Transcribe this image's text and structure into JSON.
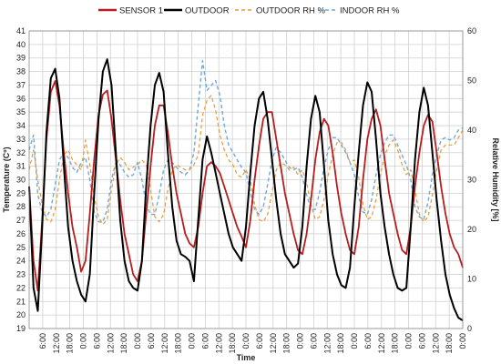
{
  "chart_data": {
    "type": "line",
    "xlabel": "Time",
    "ylabel": "Temperature (Cº)",
    "y2label": "Relative Humidity [%]",
    "ylim": [
      19,
      41
    ],
    "y2lim": [
      0,
      60
    ],
    "yticks": [
      19,
      20,
      21,
      22,
      23,
      24,
      25,
      26,
      27,
      28,
      29,
      30,
      31,
      32,
      33,
      34,
      35,
      36,
      37,
      38,
      39,
      40,
      41
    ],
    "y2ticks": [
      0,
      10,
      20,
      30,
      40,
      50,
      60
    ],
    "xlim": [
      0,
      8
    ],
    "x_unit": "days from first midnight (data index)",
    "xticks": [
      {
        "x": 0.25,
        "label": "6:00"
      },
      {
        "x": 0.5,
        "label": "12:00"
      },
      {
        "x": 0.75,
        "label": "18:00"
      },
      {
        "x": 1.0,
        "label": "0:00"
      },
      {
        "x": 1.25,
        "label": "6:00"
      },
      {
        "x": 1.5,
        "label": "12:00"
      },
      {
        "x": 1.75,
        "label": "18:00"
      },
      {
        "x": 2.0,
        "label": "0:00"
      },
      {
        "x": 2.25,
        "label": "6:00"
      },
      {
        "x": 2.5,
        "label": "12:00"
      },
      {
        "x": 2.75,
        "label": "18:00"
      },
      {
        "x": 3.0,
        "label": "0:00"
      },
      {
        "x": 3.25,
        "label": "6:00"
      },
      {
        "x": 3.5,
        "label": "12:00"
      },
      {
        "x": 3.75,
        "label": "18:00"
      },
      {
        "x": 4.0,
        "label": "0:00"
      },
      {
        "x": 4.25,
        "label": "6:00"
      },
      {
        "x": 4.5,
        "label": "12:00"
      },
      {
        "x": 4.75,
        "label": "18:00"
      },
      {
        "x": 5.0,
        "label": "0:00"
      },
      {
        "x": 5.25,
        "label": "6:00"
      },
      {
        "x": 5.5,
        "label": "12:00"
      },
      {
        "x": 5.75,
        "label": "18:00"
      },
      {
        "x": 6.0,
        "label": "0:00"
      },
      {
        "x": 6.25,
        "label": "6:00"
      },
      {
        "x": 6.5,
        "label": "12:00"
      },
      {
        "x": 6.75,
        "label": "18:00"
      },
      {
        "x": 7.0,
        "label": "0:00"
      },
      {
        "x": 7.25,
        "label": "6:00"
      },
      {
        "x": 7.5,
        "label": "12:00"
      },
      {
        "x": 7.75,
        "label": "18:00"
      },
      {
        "x": 8.0,
        "label": "0:00"
      }
    ],
    "grid": true,
    "legend_position": "top",
    "series": [
      {
        "name": "SENSOR 1",
        "axis": "left",
        "color": "#b41e1e",
        "dash": "solid",
        "width": 1.8,
        "x": [
          0.0,
          0.08,
          0.16,
          0.24,
          0.32,
          0.4,
          0.48,
          0.56,
          0.64,
          0.72,
          0.8,
          0.88,
          0.96,
          1.04,
          1.12,
          1.2,
          1.28,
          1.36,
          1.44,
          1.52,
          1.6,
          1.68,
          1.76,
          1.84,
          1.92,
          2.0,
          2.08,
          2.16,
          2.24,
          2.32,
          2.4,
          2.48,
          2.56,
          2.64,
          2.72,
          2.8,
          2.88,
          2.96,
          3.04,
          3.12,
          3.2,
          3.28,
          3.36,
          3.44,
          3.52,
          3.6,
          3.68,
          3.76,
          3.84,
          3.92,
          4.0,
          4.08,
          4.16,
          4.24,
          4.32,
          4.4,
          4.48,
          4.56,
          4.64,
          4.72,
          4.8,
          4.88,
          4.96,
          5.04,
          5.12,
          5.2,
          5.28,
          5.36,
          5.44,
          5.52,
          5.6,
          5.68,
          5.76,
          5.84,
          5.92,
          6.0,
          6.08,
          6.16,
          6.24,
          6.32,
          6.4,
          6.48,
          6.56,
          6.64,
          6.72,
          6.8,
          6.88,
          6.96,
          7.04,
          7.12,
          7.2,
          7.28,
          7.36,
          7.44,
          7.52,
          7.6,
          7.68,
          7.76,
          7.84,
          7.92,
          8.0
        ],
        "y": [
          29.5,
          24.0,
          21.8,
          27.0,
          33.0,
          36.5,
          37.3,
          35.5,
          32.0,
          29.0,
          26.5,
          25.0,
          23.2,
          24.0,
          27.5,
          31.5,
          34.8,
          36.3,
          36.6,
          34.5,
          31.5,
          28.5,
          26.0,
          24.5,
          23.0,
          22.5,
          24.0,
          27.5,
          31.0,
          34.0,
          35.5,
          35.5,
          33.5,
          31.0,
          29.0,
          27.5,
          26.0,
          25.3,
          25.0,
          26.5,
          29.0,
          31.0,
          31.3,
          31.0,
          30.5,
          29.5,
          28.5,
          27.5,
          26.5,
          25.8,
          25.0,
          27.0,
          30.0,
          32.5,
          34.5,
          35.0,
          35.0,
          33.0,
          31.0,
          29.0,
          27.5,
          26.0,
          24.8,
          24.5,
          26.0,
          28.5,
          31.5,
          33.5,
          34.5,
          34.0,
          32.0,
          29.5,
          27.5,
          26.0,
          24.8,
          24.5,
          26.5,
          30.0,
          33.0,
          34.5,
          35.2,
          34.0,
          31.5,
          29.0,
          27.5,
          26.0,
          24.8,
          24.5,
          26.5,
          29.5,
          32.0,
          34.0,
          34.8,
          34.3,
          32.0,
          29.5,
          27.5,
          26.0,
          25.0,
          24.5,
          23.5
        ]
      },
      {
        "name": "OUTDOOR",
        "axis": "left",
        "color": "#000000",
        "dash": "solid",
        "width": 2.0,
        "x": [
          0.0,
          0.08,
          0.16,
          0.24,
          0.32,
          0.4,
          0.48,
          0.56,
          0.64,
          0.72,
          0.8,
          0.88,
          0.96,
          1.04,
          1.12,
          1.2,
          1.28,
          1.36,
          1.44,
          1.52,
          1.6,
          1.68,
          1.76,
          1.84,
          1.92,
          2.0,
          2.08,
          2.16,
          2.24,
          2.32,
          2.4,
          2.48,
          2.56,
          2.64,
          2.72,
          2.8,
          2.88,
          2.96,
          3.04,
          3.12,
          3.2,
          3.28,
          3.36,
          3.44,
          3.52,
          3.6,
          3.68,
          3.76,
          3.84,
          3.92,
          4.0,
          4.08,
          4.16,
          4.24,
          4.32,
          4.4,
          4.48,
          4.56,
          4.64,
          4.72,
          4.8,
          4.88,
          4.96,
          5.04,
          5.12,
          5.2,
          5.28,
          5.36,
          5.44,
          5.52,
          5.6,
          5.68,
          5.76,
          5.84,
          5.92,
          6.0,
          6.08,
          6.16,
          6.24,
          6.32,
          6.4,
          6.48,
          6.56,
          6.64,
          6.72,
          6.8,
          6.88,
          6.96,
          7.04,
          7.12,
          7.2,
          7.28,
          7.36,
          7.44,
          7.52,
          7.6,
          7.68,
          7.76,
          7.84,
          7.92,
          8.0
        ],
        "y": [
          29.5,
          22.0,
          20.3,
          26.5,
          33.5,
          37.5,
          38.2,
          36.0,
          31.0,
          26.5,
          24.0,
          22.5,
          21.5,
          21.0,
          23.0,
          29.0,
          34.5,
          38.0,
          38.9,
          37.0,
          32.0,
          27.0,
          24.0,
          22.5,
          22.0,
          21.8,
          24.0,
          29.5,
          34.0,
          37.0,
          37.9,
          36.5,
          32.0,
          28.0,
          25.5,
          24.5,
          24.3,
          24.0,
          22.5,
          27.0,
          31.5,
          33.2,
          32.0,
          30.5,
          29.0,
          27.5,
          26.0,
          25.0,
          24.5,
          24.0,
          26.5,
          30.5,
          34.0,
          36.0,
          36.5,
          34.5,
          31.5,
          28.5,
          26.0,
          24.5,
          24.0,
          23.5,
          23.8,
          26.5,
          31.0,
          34.5,
          36.2,
          35.0,
          31.0,
          27.0,
          24.5,
          23.0,
          22.2,
          22.0,
          23.5,
          28.0,
          32.0,
          35.5,
          37.2,
          36.5,
          33.0,
          29.0,
          26.5,
          24.5,
          23.0,
          22.0,
          21.8,
          22.0,
          26.5,
          31.5,
          35.0,
          36.8,
          35.5,
          32.0,
          28.5,
          25.5,
          23.0,
          21.5,
          20.5,
          19.8,
          19.6
        ]
      },
      {
        "name": "OUTDOOR RH %",
        "axis": "right",
        "color": "#e89a33",
        "dash": "4,3",
        "width": 1.2,
        "x": [
          0.0,
          0.08,
          0.16,
          0.24,
          0.32,
          0.4,
          0.48,
          0.56,
          0.64,
          0.72,
          0.8,
          0.88,
          0.96,
          1.04,
          1.12,
          1.2,
          1.28,
          1.36,
          1.44,
          1.52,
          1.6,
          1.68,
          1.76,
          1.84,
          1.92,
          2.0,
          2.08,
          2.16,
          2.24,
          2.32,
          2.4,
          2.48,
          2.56,
          2.64,
          2.72,
          2.8,
          2.88,
          2.96,
          3.04,
          3.12,
          3.2,
          3.28,
          3.36,
          3.44,
          3.52,
          3.6,
          3.68,
          3.76,
          3.84,
          3.92,
          4.0,
          4.08,
          4.16,
          4.24,
          4.32,
          4.4,
          4.48,
          4.56,
          4.64,
          4.72,
          4.8,
          4.88,
          4.96,
          5.04,
          5.12,
          5.2,
          5.28,
          5.36,
          5.44,
          5.52,
          5.6,
          5.68,
          5.76,
          5.84,
          5.92,
          6.0,
          6.08,
          6.16,
          6.24,
          6.32,
          6.4,
          6.48,
          6.56,
          6.64,
          6.72,
          6.8,
          6.88,
          6.96,
          7.04,
          7.12,
          7.2,
          7.28,
          7.36,
          7.44,
          7.52,
          7.6,
          7.68,
          7.76,
          7.84,
          7.92,
          8.0
        ],
        "y": [
          32.0,
          36.0,
          30.0,
          25.0,
          22.0,
          21.5,
          24.0,
          30.0,
          35.0,
          36.0,
          34.0,
          33.0,
          32.0,
          38.0,
          33.0,
          26.5,
          22.5,
          21.0,
          22.0,
          28.0,
          33.0,
          34.5,
          33.5,
          32.0,
          32.5,
          33.0,
          34.0,
          33.0,
          28.0,
          22.5,
          21.5,
          23.0,
          28.0,
          32.0,
          33.0,
          32.5,
          32.0,
          32.0,
          33.0,
          35.0,
          43.0,
          46.0,
          47.0,
          44.0,
          39.0,
          36.0,
          34.0,
          33.0,
          31.0,
          30.5,
          32.0,
          30.0,
          25.0,
          22.0,
          21.5,
          23.0,
          27.5,
          32.0,
          33.5,
          33.0,
          32.0,
          32.5,
          31.0,
          32.0,
          29.5,
          25.0,
          22.0,
          22.5,
          26.0,
          31.0,
          35.0,
          37.5,
          37.5,
          36.0,
          33.5,
          34.0,
          30.5,
          25.0,
          22.0,
          22.5,
          26.0,
          31.0,
          35.0,
          37.0,
          38.0,
          36.0,
          33.0,
          31.0,
          32.0,
          28.0,
          23.0,
          21.5,
          22.5,
          27.0,
          32.0,
          36.0,
          37.0,
          37.0,
          37.0,
          38.5,
          40.0
        ]
      },
      {
        "name": "INDOOR RH %",
        "axis": "right",
        "color": "#6fa8dc",
        "dash": "4,3",
        "width": 1.4,
        "x": [
          0.0,
          0.08,
          0.16,
          0.24,
          0.32,
          0.4,
          0.48,
          0.56,
          0.64,
          0.72,
          0.8,
          0.88,
          0.96,
          1.04,
          1.12,
          1.2,
          1.28,
          1.36,
          1.44,
          1.52,
          1.6,
          1.68,
          1.76,
          1.84,
          1.92,
          2.0,
          2.08,
          2.16,
          2.24,
          2.32,
          2.4,
          2.48,
          2.56,
          2.64,
          2.72,
          2.8,
          2.88,
          2.96,
          3.04,
          3.12,
          3.2,
          3.28,
          3.36,
          3.44,
          3.52,
          3.6,
          3.68,
          3.76,
          3.84,
          3.92,
          4.0,
          4.08,
          4.16,
          4.24,
          4.32,
          4.4,
          4.48,
          4.56,
          4.64,
          4.72,
          4.8,
          4.88,
          4.96,
          5.04,
          5.12,
          5.2,
          5.28,
          5.36,
          5.44,
          5.52,
          5.6,
          5.68,
          5.76,
          5.84,
          5.92,
          6.0,
          6.08,
          6.16,
          6.24,
          6.32,
          6.4,
          6.48,
          6.56,
          6.64,
          6.72,
          6.8,
          6.88,
          6.96,
          7.04,
          7.12,
          7.2,
          7.28,
          7.36,
          7.44,
          7.52,
          7.6,
          7.68,
          7.76,
          7.84,
          7.92,
          8.0
        ],
        "y": [
          36.0,
          39.0,
          27.0,
          23.5,
          22.5,
          24.0,
          29.0,
          34.0,
          35.5,
          34.5,
          32.5,
          31.5,
          33.5,
          34.5,
          30.0,
          23.5,
          21.5,
          21.5,
          24.0,
          30.0,
          33.5,
          33.0,
          31.5,
          30.5,
          31.0,
          33.5,
          30.0,
          25.0,
          23.0,
          23.0,
          27.0,
          32.0,
          34.0,
          33.5,
          32.5,
          31.5,
          31.0,
          32.0,
          35.5,
          45.0,
          54.0,
          48.0,
          49.0,
          50.0,
          47.0,
          41.0,
          37.0,
          35.5,
          34.0,
          32.5,
          31.5,
          27.5,
          24.0,
          23.0,
          24.5,
          29.0,
          34.0,
          36.5,
          35.5,
          34.0,
          32.5,
          32.0,
          32.5,
          30.5,
          27.0,
          24.0,
          24.0,
          27.5,
          32.5,
          36.0,
          38.5,
          38.5,
          37.0,
          35.5,
          33.5,
          31.0,
          26.5,
          23.5,
          23.0,
          26.0,
          31.0,
          35.0,
          37.5,
          39.0,
          39.0,
          37.0,
          35.0,
          33.0,
          30.0,
          24.5,
          22.5,
          22.0,
          25.5,
          31.0,
          35.0,
          38.0,
          38.5,
          38.0,
          38.5,
          40.0,
          40.5
        ]
      }
    ]
  }
}
